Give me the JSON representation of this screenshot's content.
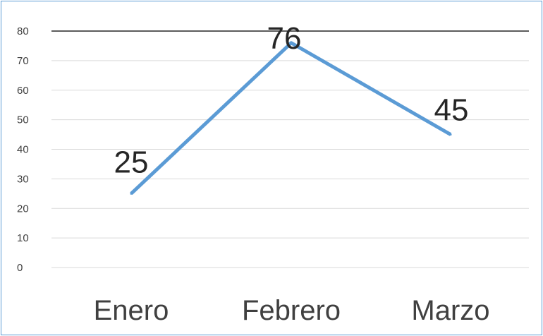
{
  "chart_data": {
    "type": "line",
    "categories": [
      "Enero",
      "Febrero",
      "Marzo"
    ],
    "series": [
      {
        "values": [
          25,
          76,
          45
        ],
        "color": "#5b9bd5"
      }
    ],
    "data_labels": [
      "25",
      "76",
      "45"
    ],
    "yticks": [
      "0",
      "10",
      "20",
      "30",
      "40",
      "50",
      "60",
      "70",
      "80"
    ],
    "ylim": [
      0,
      80
    ],
    "grid": true,
    "legend": "none"
  }
}
